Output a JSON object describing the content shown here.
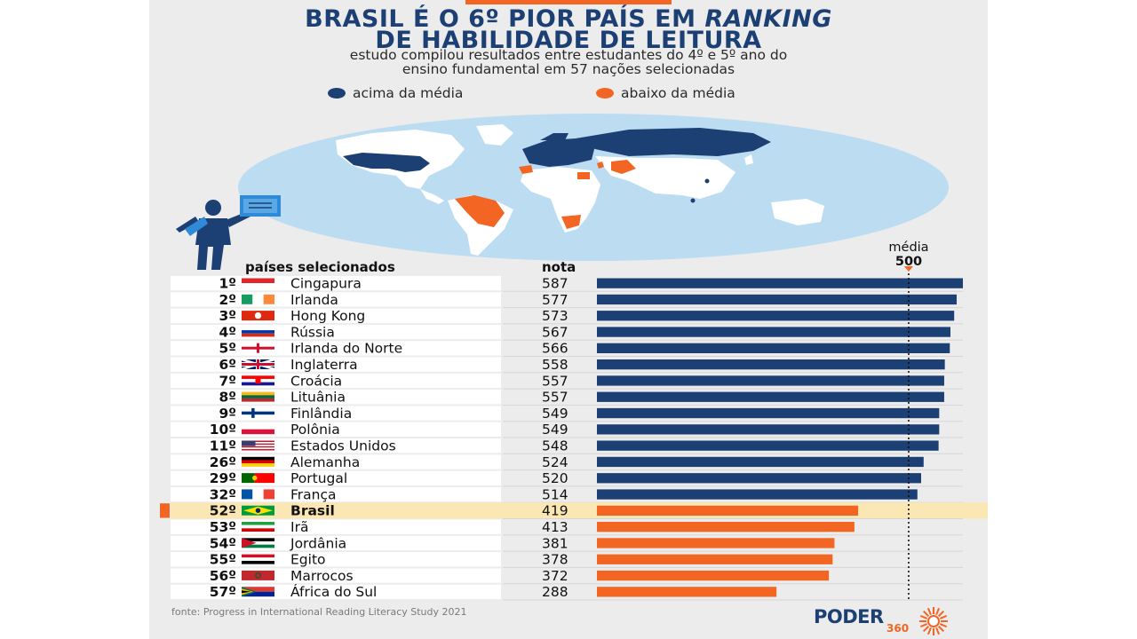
{
  "title": {
    "line1_a": "BRASIL É O 6º PIOR PAÍS EM ",
    "line1_b": "RANKING",
    "line2": "DE HABILIDADE DE LEITURA"
  },
  "subtitle": {
    "line1": "estudo compilou resultados entre estudantes do 4º e 5º ano do",
    "line2": "ensino fundamental em 57 nações selecionadas"
  },
  "legend": {
    "above": "acima da média",
    "below": "abaixo da média"
  },
  "colors": {
    "above": "#1c3f74",
    "below": "#f26522",
    "highlight_row": "#fbe7b3",
    "map_ocean": "#bcdcf2"
  },
  "headers": {
    "countries": "países selecionados",
    "score": "nota"
  },
  "reference": {
    "label": "média",
    "value_label": "500"
  },
  "source": "fonte: Progress in International Reading Literacy Study 2021",
  "logo": {
    "name": "PODER",
    "number": "360"
  },
  "chart_data": {
    "type": "bar",
    "orientation": "horizontal",
    "reference_line": 500,
    "highlight": "Brasil",
    "rows": [
      {
        "rank": "1º",
        "country": "Cingapura",
        "score": 587,
        "flag": "sg"
      },
      {
        "rank": "2º",
        "country": "Irlanda",
        "score": 577,
        "flag": "ie"
      },
      {
        "rank": "3º",
        "country": "Hong Kong",
        "score": 573,
        "flag": "hk"
      },
      {
        "rank": "4º",
        "country": "Rússia",
        "score": 567,
        "flag": "ru"
      },
      {
        "rank": "5º",
        "country": "Irlanda do Norte",
        "score": 566,
        "flag": "nir"
      },
      {
        "rank": "6º",
        "country": "Inglaterra",
        "score": 558,
        "flag": "uk"
      },
      {
        "rank": "7º",
        "country": "Croácia",
        "score": 557,
        "flag": "hr"
      },
      {
        "rank": "8º",
        "country": "Lituânia",
        "score": 557,
        "flag": "lt"
      },
      {
        "rank": "9º",
        "country": "Finlândia",
        "score": 549,
        "flag": "fi"
      },
      {
        "rank": "10º",
        "country": "Polônia",
        "score": 549,
        "flag": "pl"
      },
      {
        "rank": "11º",
        "country": "Estados Unidos",
        "score": 548,
        "flag": "us"
      },
      {
        "rank": "26º",
        "country": "Alemanha",
        "score": 524,
        "flag": "de"
      },
      {
        "rank": "29º",
        "country": "Portugal",
        "score": 520,
        "flag": "pt"
      },
      {
        "rank": "32º",
        "country": "França",
        "score": 514,
        "flag": "fr"
      },
      {
        "rank": "52º",
        "country": "Brasil",
        "score": 419,
        "flag": "br"
      },
      {
        "rank": "53º",
        "country": "Irã",
        "score": 413,
        "flag": "ir"
      },
      {
        "rank": "54º",
        "country": "Jordânia",
        "score": 381,
        "flag": "jo"
      },
      {
        "rank": "55º",
        "country": "Egito",
        "score": 378,
        "flag": "eg"
      },
      {
        "rank": "56º",
        "country": "Marrocos",
        "score": 372,
        "flag": "ma"
      },
      {
        "rank": "57º",
        "country": "África do Sul",
        "score": 288,
        "flag": "za"
      }
    ]
  }
}
